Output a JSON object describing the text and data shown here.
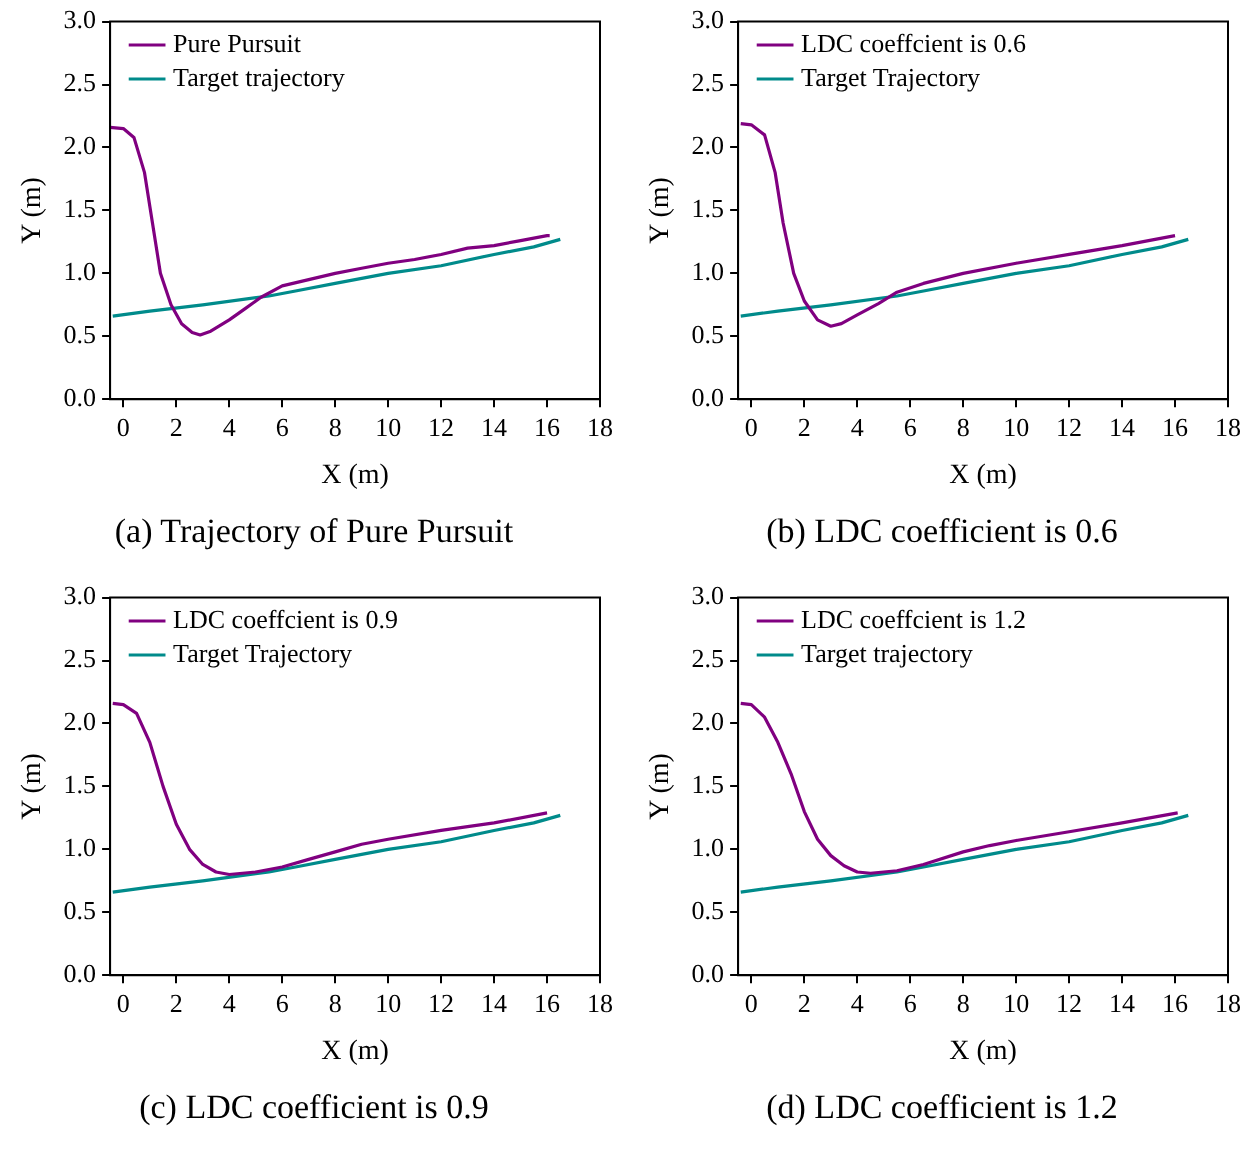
{
  "chart_data": [
    {
      "type": "line",
      "xlabel": "X (m)",
      "ylabel": "Y (m)",
      "xlim": [
        -0.5,
        18
      ],
      "xticks": [
        0,
        2,
        4,
        6,
        8,
        10,
        12,
        14,
        16,
        18
      ],
      "ylim": [
        0,
        3
      ],
      "yticks": [
        {
          "value": 0,
          "label": "0.0"
        },
        {
          "value": 0.5,
          "label": "0.5"
        },
        {
          "value": 1,
          "label": "1.0"
        },
        {
          "value": 1.5,
          "label": "1.5"
        },
        {
          "value": 2,
          "label": "2.0"
        },
        {
          "value": 2.5,
          "label": "2.5"
        },
        {
          "value": 3,
          "label": "3.0"
        }
      ],
      "grid": false,
      "legend": "top left",
      "annotations": [
        "(a) Trajectory of Pure Pursuit"
      ],
      "series": [
        {
          "name": "Pure Pursuit",
          "color": "#800080",
          "x": [
            -0.5,
            0,
            0.4,
            0.8,
            1.1,
            1.4,
            1.8,
            2.2,
            2.6,
            2.9,
            3.3,
            4,
            4.6,
            5.2,
            6,
            7,
            8,
            9,
            10,
            11,
            12,
            13,
            14,
            15,
            16,
            16.1
          ],
          "values": [
            2.16,
            2.15,
            2.08,
            1.8,
            1.4,
            1.0,
            0.75,
            0.6,
            0.53,
            0.51,
            0.54,
            0.63,
            0.72,
            0.81,
            0.9,
            0.95,
            1.0,
            1.04,
            1.08,
            1.11,
            1.15,
            1.2,
            1.22,
            1.26,
            1.3,
            1.3
          ]
        },
        {
          "name": "Target trajectory",
          "color": "#008b8b",
          "x": [
            -0.4,
            1,
            3,
            5.5,
            6.5,
            8,
            10,
            12,
            14,
            15.5,
            16.5
          ],
          "values": [
            0.66,
            0.7,
            0.75,
            0.82,
            0.86,
            0.92,
            1.0,
            1.06,
            1.15,
            1.21,
            1.27
          ]
        }
      ]
    },
    {
      "type": "line",
      "xlabel": "X (m)",
      "ylabel": "Y (m)",
      "xlim": [
        -0.5,
        18
      ],
      "xticks": [
        0,
        2,
        4,
        6,
        8,
        10,
        12,
        14,
        16,
        18
      ],
      "ylim": [
        0,
        3
      ],
      "yticks": [
        {
          "value": 0,
          "label": "0.0"
        },
        {
          "value": 0.5,
          "label": "0.5"
        },
        {
          "value": 1,
          "label": "1.0"
        },
        {
          "value": 1.5,
          "label": "1.5"
        },
        {
          "value": 2,
          "label": "2.0"
        },
        {
          "value": 2.5,
          "label": "2.5"
        },
        {
          "value": 3,
          "label": "3.0"
        }
      ],
      "grid": false,
      "legend": "top left",
      "annotations": [
        "(b) LDC coefficient is 0.6"
      ],
      "series": [
        {
          "name": "LDC coeffcient is 0.6",
          "color": "#800080",
          "x": [
            -0.4,
            0,
            0.5,
            0.9,
            1.2,
            1.6,
            2,
            2.5,
            3,
            3.4,
            4,
            4.8,
            5.5,
            6.5,
            8,
            10,
            12,
            14,
            16
          ],
          "values": [
            2.19,
            2.18,
            2.1,
            1.8,
            1.4,
            1.0,
            0.78,
            0.63,
            0.58,
            0.6,
            0.67,
            0.76,
            0.85,
            0.92,
            1.0,
            1.08,
            1.15,
            1.22,
            1.3
          ]
        },
        {
          "name": "Target Trajectory",
          "color": "#008b8b",
          "x": [
            -0.4,
            1,
            3,
            5.5,
            6.5,
            8,
            10,
            12,
            14,
            15.5,
            16.5
          ],
          "values": [
            0.66,
            0.7,
            0.75,
            0.82,
            0.86,
            0.92,
            1.0,
            1.06,
            1.15,
            1.21,
            1.27
          ]
        }
      ]
    },
    {
      "type": "line",
      "xlabel": "X (m)",
      "ylabel": "Y (m)",
      "xlim": [
        -0.5,
        18
      ],
      "xticks": [
        0,
        2,
        4,
        6,
        8,
        10,
        12,
        14,
        16,
        18
      ],
      "ylim": [
        0,
        3
      ],
      "yticks": [
        {
          "value": 0,
          "label": "0.0"
        },
        {
          "value": 0.5,
          "label": "0.5"
        },
        {
          "value": 1,
          "label": "1.0"
        },
        {
          "value": 1.5,
          "label": "1.5"
        },
        {
          "value": 2,
          "label": "2.0"
        },
        {
          "value": 2.5,
          "label": "2.5"
        },
        {
          "value": 3,
          "label": "3.0"
        }
      ],
      "grid": false,
      "legend": "top left",
      "annotations": [
        "(c) LDC coefficient is 0.9"
      ],
      "series": [
        {
          "name": "LDC coeffcient is 0.9",
          "color": "#800080",
          "x": [
            -0.4,
            0,
            0.5,
            1,
            1.5,
            2,
            2.5,
            3,
            3.5,
            4,
            5,
            6,
            7,
            8,
            9,
            10,
            12,
            14,
            16
          ],
          "values": [
            2.16,
            2.15,
            2.08,
            1.85,
            1.5,
            1.2,
            1.0,
            0.88,
            0.82,
            0.8,
            0.82,
            0.86,
            0.92,
            0.98,
            1.04,
            1.08,
            1.15,
            1.21,
            1.29
          ]
        },
        {
          "name": "Target Trajectory",
          "color": "#008b8b",
          "x": [
            -0.4,
            1,
            3,
            5.5,
            6.5,
            8,
            10,
            12,
            14,
            15.5,
            16.5
          ],
          "values": [
            0.66,
            0.7,
            0.75,
            0.82,
            0.86,
            0.92,
            1.0,
            1.06,
            1.15,
            1.21,
            1.27
          ]
        }
      ]
    },
    {
      "type": "line",
      "xlabel": "X (m)",
      "ylabel": "Y (m)",
      "xlim": [
        -0.5,
        18
      ],
      "xticks": [
        0,
        2,
        4,
        6,
        8,
        10,
        12,
        14,
        16,
        18
      ],
      "ylim": [
        0,
        3
      ],
      "yticks": [
        {
          "value": 0,
          "label": "0.0"
        },
        {
          "value": 0.5,
          "label": "0.5"
        },
        {
          "value": 1,
          "label": "1.0"
        },
        {
          "value": 1.5,
          "label": "1.5"
        },
        {
          "value": 2,
          "label": "2.0"
        },
        {
          "value": 2.5,
          "label": "2.5"
        },
        {
          "value": 3,
          "label": "3.0"
        }
      ],
      "grid": false,
      "legend": "top left",
      "annotations": [
        "(d) LDC coefficient is 1.2"
      ],
      "series": [
        {
          "name": "LDC coeffcient is 1.2",
          "color": "#800080",
          "x": [
            -0.4,
            0,
            0.5,
            1,
            1.5,
            2,
            2.5,
            3,
            3.5,
            4,
            4.5,
            5.5,
            6.5,
            8,
            9,
            10,
            12,
            14,
            16.1
          ],
          "values": [
            2.16,
            2.15,
            2.05,
            1.85,
            1.6,
            1.3,
            1.08,
            0.95,
            0.87,
            0.82,
            0.81,
            0.83,
            0.88,
            0.98,
            1.03,
            1.07,
            1.14,
            1.21,
            1.29
          ]
        },
        {
          "name": "Target trajectory",
          "color": "#008b8b",
          "x": [
            -0.4,
            1,
            3,
            5.5,
            6.5,
            8,
            10,
            12,
            14,
            15.5,
            16.5
          ],
          "values": [
            0.66,
            0.7,
            0.75,
            0.82,
            0.86,
            0.92,
            1.0,
            1.06,
            1.15,
            1.21,
            1.27
          ]
        }
      ]
    }
  ]
}
